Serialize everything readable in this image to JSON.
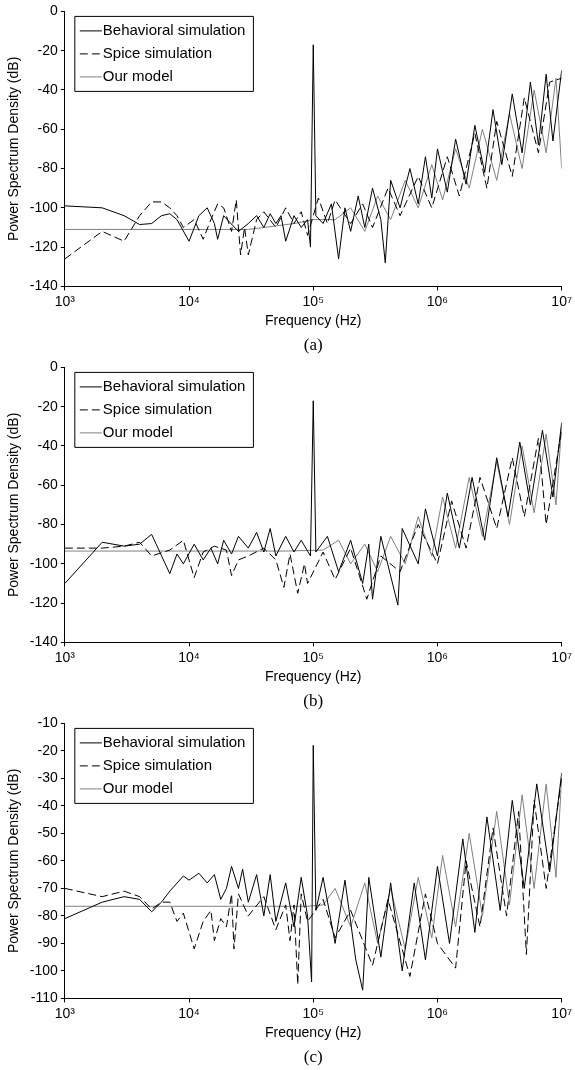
{
  "chart_data": [
    {
      "type": "line",
      "xlabel": "Frequency (Hz)",
      "ylabel": "Power Spectrum Density (dB)",
      "annotations": [
        "(a)"
      ],
      "log": "x",
      "legend": "top left",
      "xlim": [
        1000,
        10000000
      ],
      "xticks": [
        {
          "value": 1000,
          "label": "10³"
        },
        {
          "value": 10000,
          "label": "10⁴"
        },
        {
          "value": 100000,
          "label": "10⁵"
        },
        {
          "value": 1000000,
          "label": "10⁶"
        },
        {
          "value": 10000000,
          "label": "10⁷"
        }
      ],
      "ylim": [
        -140,
        0
      ],
      "yticks": [
        -140,
        -120,
        -100,
        -80,
        -60,
        -40,
        -20,
        0
      ],
      "series": [
        {
          "name": "Behavioral simulation",
          "color": "#000000",
          "line_style": "solid",
          "x": [
            1000,
            2000,
            3000,
            4000,
            5000,
            6000,
            7000,
            8000,
            10000,
            12000,
            14000,
            16000,
            17000,
            19000,
            21000,
            25000,
            30000,
            35000,
            40000,
            45000,
            50000,
            55000,
            60000,
            70000,
            80000,
            90000,
            95000,
            100000,
            105000,
            120000,
            140000,
            160000,
            180000,
            200000,
            230000,
            260000,
            300000,
            350000,
            380000,
            420000,
            500000,
            600000,
            700000,
            800000,
            900000,
            1000000,
            1200000,
            1400000,
            1700000,
            2000000,
            2400000,
            2800000,
            3300000,
            4000000,
            4800000,
            5600000,
            6500000,
            7500000,
            8500000,
            10000000
          ],
          "values": [
            -99,
            -100,
            -104,
            -108.5,
            -108,
            -104,
            -103,
            -106,
            -117,
            -104,
            -100,
            -108,
            -116,
            -104,
            -107,
            -112,
            -108,
            -104,
            -110,
            -103,
            -108,
            -104,
            -117,
            -104,
            -110,
            -106,
            -120,
            -17,
            -104,
            -108,
            -98,
            -126,
            -100,
            -112,
            -94,
            -110,
            -90,
            -106,
            -128,
            -86,
            -100,
            -80,
            -98,
            -74,
            -95,
            -70,
            -92,
            -65,
            -88,
            -58,
            -82,
            -50,
            -78,
            -42,
            -72,
            -36,
            -68,
            -32,
            -66,
            -30
          ]
        },
        {
          "name": "Spice simulation",
          "color": "#000000",
          "line_style": "dashed",
          "x": [
            1000,
            2000,
            3000,
            4000,
            5000,
            6000,
            7000,
            8000,
            9000,
            11000,
            13000,
            15000,
            17000,
            19000,
            22000,
            24000,
            26000,
            28000,
            30000,
            35000,
            40000,
            50000,
            60000,
            70000,
            80000,
            90000,
            110000,
            130000,
            150000,
            200000,
            250000,
            300000,
            400000,
            500000,
            700000,
            900000,
            1200000,
            1500000,
            2000000,
            2500000,
            3000000,
            4000000,
            5000000,
            6500000,
            8000000,
            10000000
          ],
          "values": [
            -126,
            -112,
            -117,
            -104,
            -97,
            -97,
            -100,
            -104,
            -110,
            -106,
            -116,
            -106,
            -98,
            -100,
            -112,
            -96,
            -124,
            -110,
            -124,
            -106,
            -102,
            -110,
            -100,
            -108,
            -102,
            -114,
            -95,
            -108,
            -96,
            -108,
            -98,
            -110,
            -90,
            -104,
            -84,
            -100,
            -74,
            -94,
            -62,
            -90,
            -56,
            -84,
            -44,
            -72,
            -36,
            -34
          ]
        },
        {
          "name": "Our model",
          "color": "#808080",
          "line_style": "solid",
          "x": [
            1000,
            20000,
            30000,
            40000,
            70000,
            100000,
            150000,
            200000,
            260000,
            330000,
            420000,
            550000,
            700000,
            900000,
            1100000,
            1400000,
            1800000,
            2300000,
            3000000,
            3800000,
            4800000,
            6000000,
            7500000,
            9000000,
            10000000
          ],
          "values": [
            -111,
            -111,
            -111,
            -110,
            -108,
            -106,
            -106,
            -100,
            -112,
            -94,
            -106,
            -86,
            -100,
            -78,
            -96,
            -70,
            -90,
            -60,
            -86,
            -52,
            -80,
            -40,
            -72,
            -34,
            -80
          ]
        }
      ]
    },
    {
      "type": "line",
      "xlabel": "Frequency (Hz)",
      "ylabel": "Power Spectrum Density (dB)",
      "annotations": [
        "(b)"
      ],
      "log": "x",
      "legend": "top left",
      "xlim": [
        1000,
        10000000
      ],
      "xticks": [
        {
          "value": 1000,
          "label": "10³"
        },
        {
          "value": 10000,
          "label": "10⁴"
        },
        {
          "value": 100000,
          "label": "10⁵"
        },
        {
          "value": 1000000,
          "label": "10⁶"
        },
        {
          "value": 10000000,
          "label": "10⁷"
        }
      ],
      "ylim": [
        -140,
        0
      ],
      "yticks": [
        -140,
        -120,
        -100,
        -80,
        -60,
        -40,
        -20,
        0
      ],
      "series": [
        {
          "name": "Behavioral simulation",
          "color": "#000000",
          "line_style": "solid",
          "x": [
            1000,
            2000,
            3000,
            4000,
            5000,
            7000,
            8000,
            9000,
            11000,
            13000,
            15000,
            17000,
            19000,
            22000,
            25000,
            30000,
            35000,
            40000,
            45000,
            50000,
            60000,
            70000,
            80000,
            95000,
            100000,
            105000,
            130000,
            160000,
            200000,
            250000,
            280000,
            300000,
            350000,
            480000,
            520000,
            700000,
            800000,
            1000000,
            1200000,
            1500000,
            1900000,
            2400000,
            3000000,
            3700000,
            4600000,
            5600000,
            7000000,
            8500000,
            10000000
          ],
          "values": [
            -110,
            -89,
            -91,
            -90,
            -85,
            -105,
            -95,
            -100,
            -90,
            -98,
            -92,
            -100,
            -88,
            -95,
            -86,
            -92,
            -84,
            -94,
            -82,
            -96,
            -86,
            -94,
            -88,
            -96,
            -17,
            -94,
            -86,
            -104,
            -88,
            -110,
            -90,
            -118,
            -86,
            -121,
            -82,
            -100,
            -72,
            -96,
            -64,
            -92,
            -56,
            -88,
            -46,
            -76,
            -38,
            -70,
            -32,
            -66,
            -28
          ]
        },
        {
          "name": "Spice simulation",
          "color": "#000000",
          "line_style": "dashed",
          "x": [
            1000,
            2000,
            3000,
            4000,
            5000,
            7000,
            9000,
            11000,
            13000,
            16000,
            20000,
            22000,
            25000,
            30000,
            40000,
            50000,
            58000,
            65000,
            75000,
            85000,
            90000,
            120000,
            150000,
            200000,
            270000,
            350000,
            500000,
            700000,
            1000000,
            1300000,
            1700000,
            2200000,
            3000000,
            4000000,
            5000000,
            6500000,
            7500000,
            10000000
          ],
          "values": [
            -92,
            -92,
            -91,
            -89,
            -96,
            -93,
            -88,
            -107,
            -94,
            -91,
            -93,
            -106,
            -98,
            -96,
            -92,
            -98,
            -112,
            -95,
            -115,
            -100,
            -110,
            -94,
            -108,
            -92,
            -118,
            -96,
            -104,
            -80,
            -100,
            -68,
            -92,
            -56,
            -82,
            -46,
            -76,
            -36,
            -80,
            -32
          ]
        },
        {
          "name": "Our model",
          "color": "#808080",
          "line_style": "solid",
          "x": [
            1000,
            30000,
            60000,
            120000,
            160000,
            200000,
            260000,
            330000,
            420000,
            550000,
            700000,
            900000,
            1100000,
            1400000,
            1800000,
            2300000,
            3000000,
            3800000,
            4800000,
            6000000,
            7500000,
            9000000,
            10000000
          ],
          "values": [
            -93.5,
            -93.5,
            -93.5,
            -93,
            -88,
            -100,
            -90,
            -104,
            -86,
            -100,
            -76,
            -96,
            -66,
            -92,
            -56,
            -86,
            -48,
            -80,
            -40,
            -74,
            -34,
            -70,
            -30
          ]
        }
      ]
    },
    {
      "type": "line",
      "xlabel": "Frequency (Hz)",
      "ylabel": "Power Spectrum Density (dB)",
      "annotations": [
        "(c)"
      ],
      "log": "x",
      "legend": "top left",
      "xlim": [
        1000,
        10000000
      ],
      "xticks": [
        {
          "value": 1000,
          "label": "10³"
        },
        {
          "value": 10000,
          "label": "10⁴"
        },
        {
          "value": 100000,
          "label": "10⁵"
        },
        {
          "value": 1000000,
          "label": "10⁶"
        },
        {
          "value": 10000000,
          "label": "10⁷"
        }
      ],
      "ylim": [
        -110,
        -10
      ],
      "yticks": [
        -110,
        -100,
        -90,
        -80,
        -70,
        -60,
        -50,
        -40,
        -30,
        -20,
        -10
      ],
      "series": [
        {
          "name": "Behavioral simulation",
          "color": "#000000",
          "line_style": "solid",
          "x": [
            1000,
            2000,
            3000,
            4000,
            5000,
            6000,
            7000,
            9000,
            10000,
            12000,
            14000,
            16000,
            18000,
            20000,
            22000,
            25000,
            27000,
            30000,
            35000,
            40000,
            45000,
            50000,
            60000,
            70000,
            80000,
            90000,
            97000,
            100000,
            105000,
            120000,
            150000,
            180000,
            220000,
            250000,
            280000,
            350000,
            420000,
            520000,
            650000,
            800000,
            1000000,
            1250000,
            1600000,
            2000000,
            2500000,
            3200000,
            4000000,
            5000000,
            6300000,
            8000000,
            10000000
          ],
          "values": [
            -81,
            -75,
            -73,
            -74,
            -78.5,
            -75,
            -71,
            -65.5,
            -67,
            -64.5,
            -68,
            -65,
            -74,
            -70,
            -62,
            -70,
            -63,
            -75,
            -65,
            -80,
            -65,
            -82,
            -68,
            -84,
            -66,
            -80,
            -104,
            -18,
            -78,
            -66,
            -90,
            -67,
            -96,
            -107,
            -66,
            -95,
            -68,
            -100,
            -68,
            -96,
            -62,
            -90,
            -52,
            -86,
            -44,
            -78,
            -38,
            -70,
            -32,
            -64,
            -28
          ]
        },
        {
          "name": "Spice simulation",
          "color": "#000000",
          "line_style": "dashed",
          "x": [
            1000,
            2000,
            3000,
            4000,
            5000,
            6000,
            7000,
            8000,
            9000,
            11000,
            13000,
            15000,
            16000,
            18000,
            20000,
            22000,
            23000,
            25000,
            30000,
            40000,
            50000,
            60000,
            65000,
            70000,
            75000,
            80000,
            90000,
            120000,
            150000,
            200000,
            300000,
            400000,
            600000,
            800000,
            1000000,
            1400000,
            1700000,
            2200000,
            2800000,
            3600000,
            4500000,
            5200000,
            6000000,
            7500000,
            10000000
          ],
          "values": [
            -70,
            -73,
            -71,
            -73,
            -77.5,
            -75,
            -75,
            -82,
            -79,
            -92,
            -82,
            -78,
            -89,
            -81,
            -84,
            -72,
            -92,
            -72,
            -80,
            -73,
            -85,
            -76,
            -89,
            -76,
            -105,
            -72,
            -82,
            -74,
            -88,
            -78,
            -98,
            -74,
            -102,
            -72,
            -90,
            -99,
            -60,
            -84,
            -48,
            -80,
            -42,
            -94,
            -38,
            -70,
            -30
          ]
        },
        {
          "name": "Our model",
          "color": "#808080",
          "line_style": "solid",
          "x": [
            1000,
            30000,
            90000,
            120000,
            150000,
            200000,
            260000,
            330000,
            420000,
            550000,
            700000,
            900000,
            1100000,
            1400000,
            1800000,
            2300000,
            3000000,
            3800000,
            4800000,
            6000000,
            7500000,
            9000000,
            10000000
          ],
          "values": [
            -76.5,
            -76.5,
            -76.5,
            -76,
            -70,
            -84,
            -68,
            -90,
            -70,
            -92,
            -66,
            -88,
            -58,
            -84,
            -50,
            -80,
            -42,
            -76,
            -36,
            -70,
            -32,
            -66,
            -30
          ]
        }
      ]
    }
  ]
}
